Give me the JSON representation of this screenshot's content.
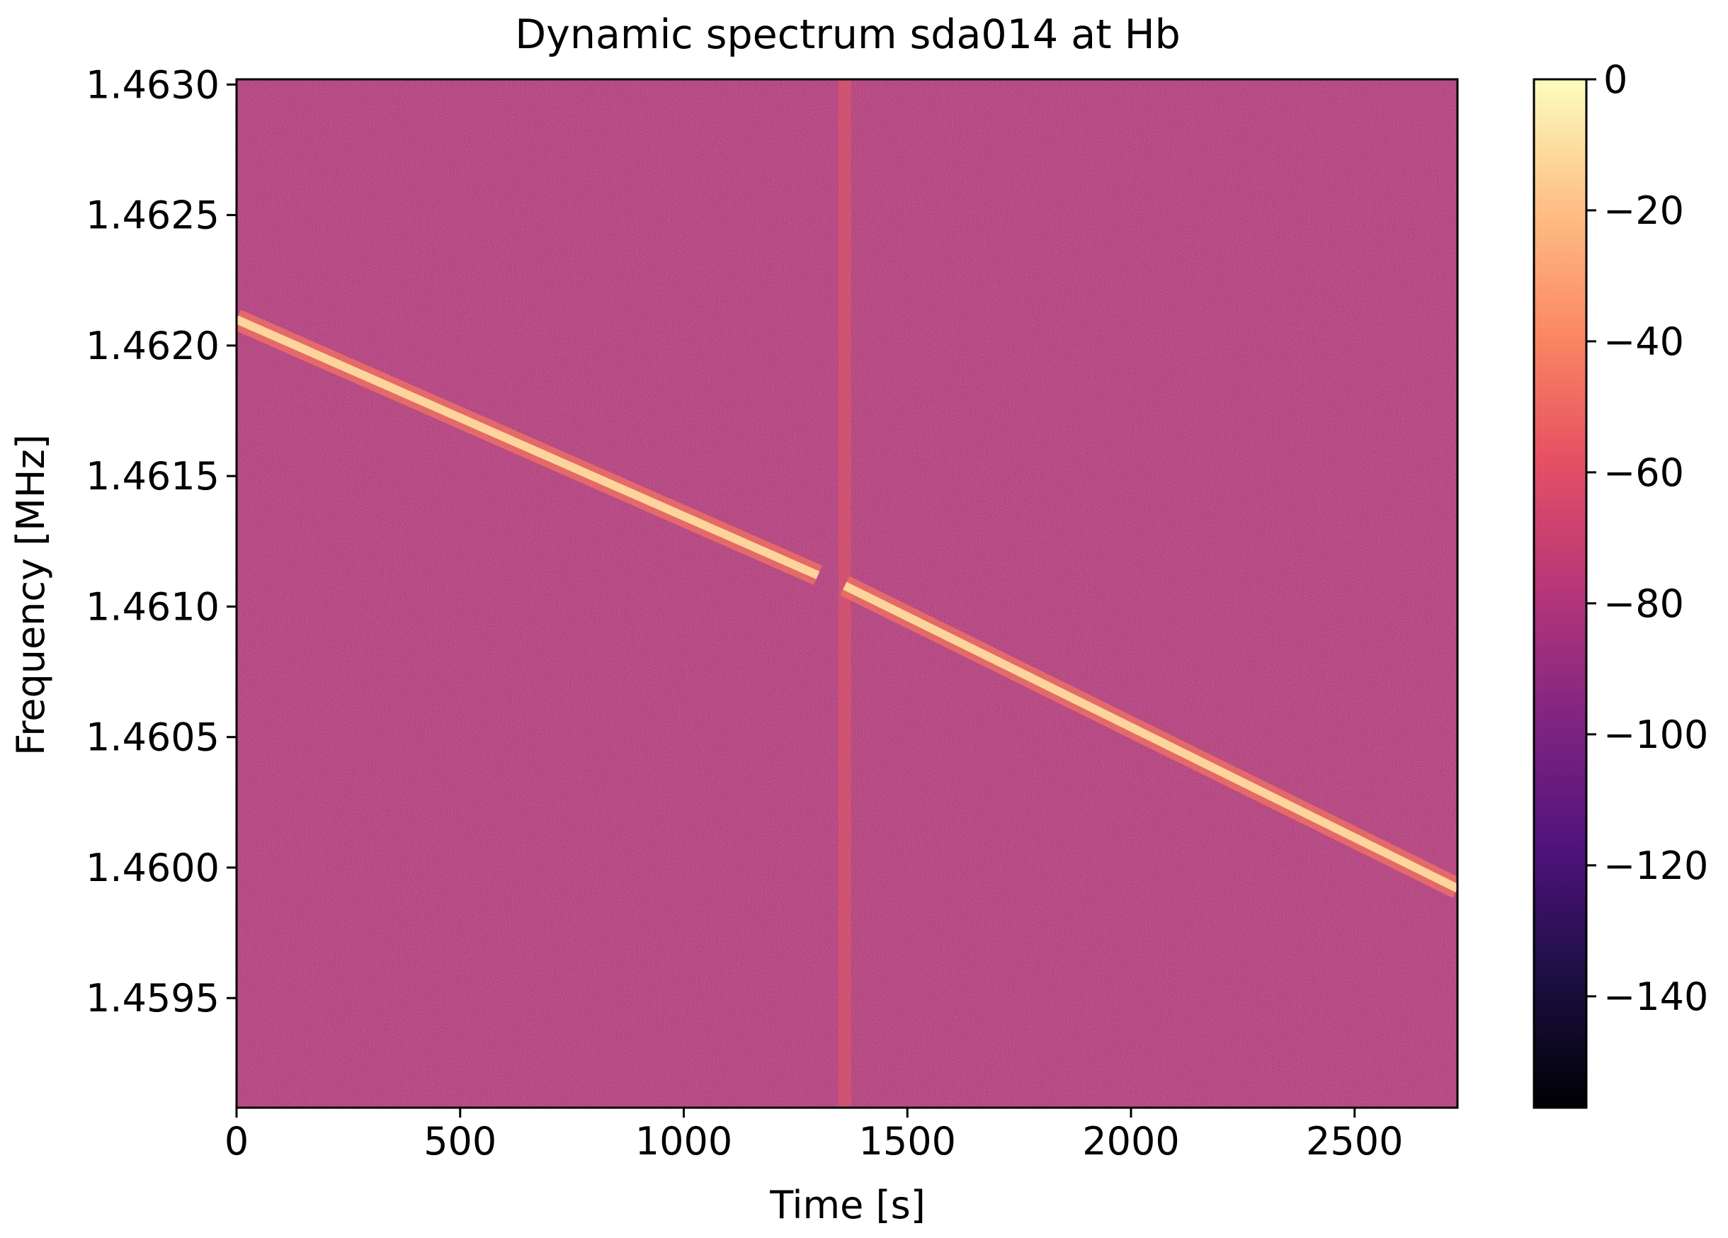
{
  "chart_data": {
    "type": "heatmap",
    "title": "Dynamic spectrum sda014 at Hb",
    "xlabel": "Time [s]",
    "ylabel": "Frequency [MHz]",
    "xlim": [
      0,
      2730
    ],
    "ylim": [
      1.45908,
      1.46302
    ],
    "xticks": [
      0,
      500,
      1000,
      1500,
      2000,
      2500
    ],
    "xtick_labels": [
      "0",
      "500",
      "1000",
      "1500",
      "2000",
      "2500"
    ],
    "yticks": [
      1.4595,
      1.46,
      1.4605,
      1.461,
      1.4615,
      1.462,
      1.4625,
      1.463
    ],
    "ytick_labels": [
      "1.4595",
      "1.4600",
      "1.4605",
      "1.4610",
      "1.4615",
      "1.4620",
      "1.4625",
      "1.4630"
    ],
    "colormap": "magma",
    "background_level_db": -75,
    "signal_level_db": -10,
    "signal_segments": [
      {
        "t_start": 0,
        "t_end": 1300,
        "f_start": 1.4621,
        "f_end": 1.46112
      },
      {
        "t_start": 1360,
        "t_end": 2730,
        "f_start": 1.46108,
        "f_end": 1.45992
      }
    ],
    "vertical_artifact_time": 1360,
    "colorbar": {
      "range": [
        -157,
        0
      ],
      "ticks": [
        0,
        -20,
        -40,
        -60,
        -80,
        -100,
        -120,
        -140
      ],
      "tick_labels": [
        "0",
        "−20",
        "−40",
        "−60",
        "−80",
        "−100",
        "−120",
        "−140"
      ]
    }
  }
}
